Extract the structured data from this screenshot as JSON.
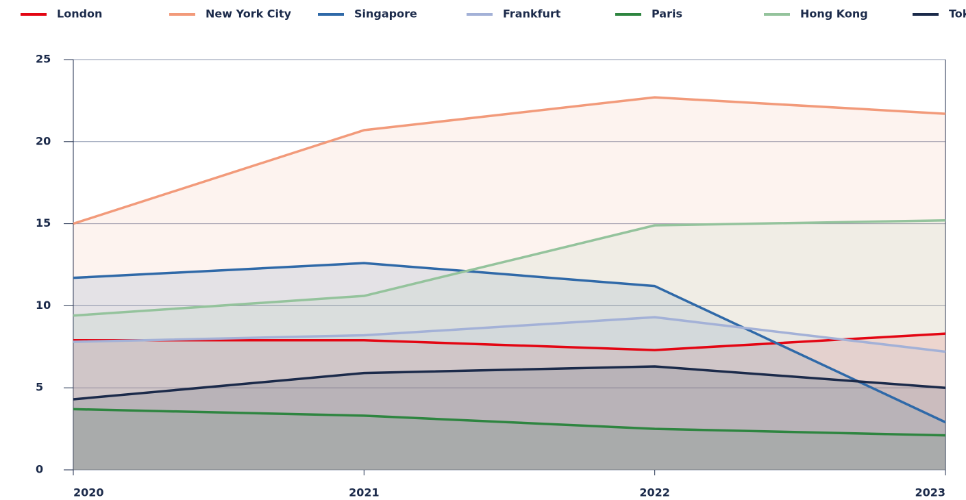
{
  "chart_data": {
    "type": "line",
    "categories": [
      "2020",
      "2021",
      "2022",
      "2023"
    ],
    "series": [
      {
        "name": "London",
        "color": "#e30613",
        "values": [
          7.9,
          7.9,
          7.3,
          8.3
        ]
      },
      {
        "name": "New York City",
        "color": "#f29a7a",
        "values": [
          15.0,
          20.7,
          22.7,
          21.7
        ]
      },
      {
        "name": "Singapore",
        "color": "#2f69a8",
        "values": [
          11.7,
          12.6,
          11.2,
          2.9
        ]
      },
      {
        "name": "Frankfurt",
        "color": "#a3b1d7",
        "values": [
          7.8,
          8.2,
          9.3,
          7.2
        ]
      },
      {
        "name": "Paris",
        "color": "#2e8540",
        "values": [
          3.7,
          3.3,
          2.5,
          2.1
        ]
      },
      {
        "name": "Hong Kong",
        "color": "#94c39c",
        "values": [
          9.4,
          10.6,
          14.9,
          15.2
        ]
      },
      {
        "name": "Tokyo",
        "color": "#1b2a4a",
        "values": [
          4.3,
          5.9,
          6.3,
          5.0
        ]
      }
    ],
    "ylim": [
      0,
      25
    ],
    "yticks": [
      0,
      5,
      10,
      15,
      20,
      25
    ],
    "grid": true,
    "legend": "top",
    "fill": true
  }
}
